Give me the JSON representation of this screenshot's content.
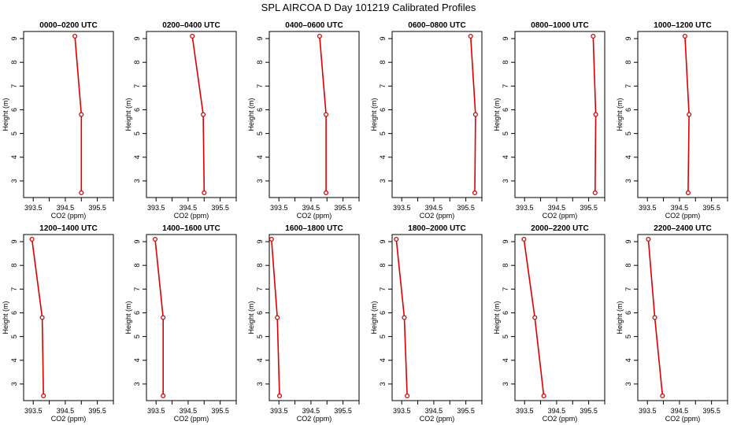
{
  "title": "SPL AIRCOA D  Day 101219  Calibrated Profiles",
  "style": {
    "line_color": "#dd0000",
    "axis_color": "#000000"
  },
  "axes": {
    "xlabel": "CO2 (ppm)",
    "ylabel": "Height (m)",
    "xlim": [
      393.2,
      396.0
    ],
    "ylim": [
      2.3,
      9.3
    ],
    "xticks": [
      393.5,
      394.0,
      394.5,
      395.0,
      395.5,
      396.0
    ],
    "xtick_labels": [
      "393.5",
      "",
      "394.5",
      "",
      "395.5",
      ""
    ],
    "yticks": [
      3,
      4,
      5,
      6,
      7,
      8,
      9
    ],
    "ytick_labels": [
      "3",
      "4",
      "5",
      "6",
      "7",
      "8",
      "9"
    ]
  },
  "chart_data": [
    {
      "type": "line",
      "title": "0000–0200 UTC",
      "x": [
        394.8,
        395.0,
        395.0
      ],
      "y": [
        9.1,
        5.8,
        2.5
      ]
    },
    {
      "type": "line",
      "title": "0200–0400 UTC",
      "x": [
        394.63,
        394.97,
        395.0
      ],
      "y": [
        9.1,
        5.8,
        2.5
      ]
    },
    {
      "type": "line",
      "title": "0400–0600 UTC",
      "x": [
        394.77,
        394.97,
        394.97
      ],
      "y": [
        9.1,
        5.8,
        2.5
      ]
    },
    {
      "type": "line",
      "title": "0600–0800 UTC",
      "x": [
        395.65,
        395.8,
        395.78
      ],
      "y": [
        9.1,
        5.8,
        2.5
      ]
    },
    {
      "type": "line",
      "title": "0800–1000 UTC",
      "x": [
        395.64,
        395.72,
        395.7
      ],
      "y": [
        9.1,
        5.8,
        2.5
      ]
    },
    {
      "type": "line",
      "title": "1000–1200 UTC",
      "x": [
        394.67,
        394.8,
        394.77
      ],
      "y": [
        9.1,
        5.8,
        2.5
      ]
    },
    {
      "type": "line",
      "title": "1200–1400 UTC",
      "x": [
        393.46,
        393.78,
        393.82
      ],
      "y": [
        9.1,
        5.8,
        2.5
      ]
    },
    {
      "type": "line",
      "title": "1400–1600 UTC",
      "x": [
        393.47,
        393.72,
        393.72
      ],
      "y": [
        9.1,
        5.8,
        2.5
      ]
    },
    {
      "type": "line",
      "title": "1600–1800 UTC",
      "x": [
        393.27,
        393.45,
        393.52
      ],
      "y": [
        9.1,
        5.8,
        2.5
      ]
    },
    {
      "type": "line",
      "title": "1800–2000 UTC",
      "x": [
        393.33,
        393.58,
        393.67
      ],
      "y": [
        9.1,
        5.8,
        2.5
      ]
    },
    {
      "type": "line",
      "title": "2000–2200 UTC",
      "x": [
        393.48,
        393.82,
        394.1
      ],
      "y": [
        9.1,
        5.8,
        2.5
      ]
    },
    {
      "type": "line",
      "title": "2200–2400 UTC",
      "x": [
        393.53,
        393.73,
        393.97
      ],
      "y": [
        9.1,
        5.8,
        2.5
      ]
    }
  ]
}
